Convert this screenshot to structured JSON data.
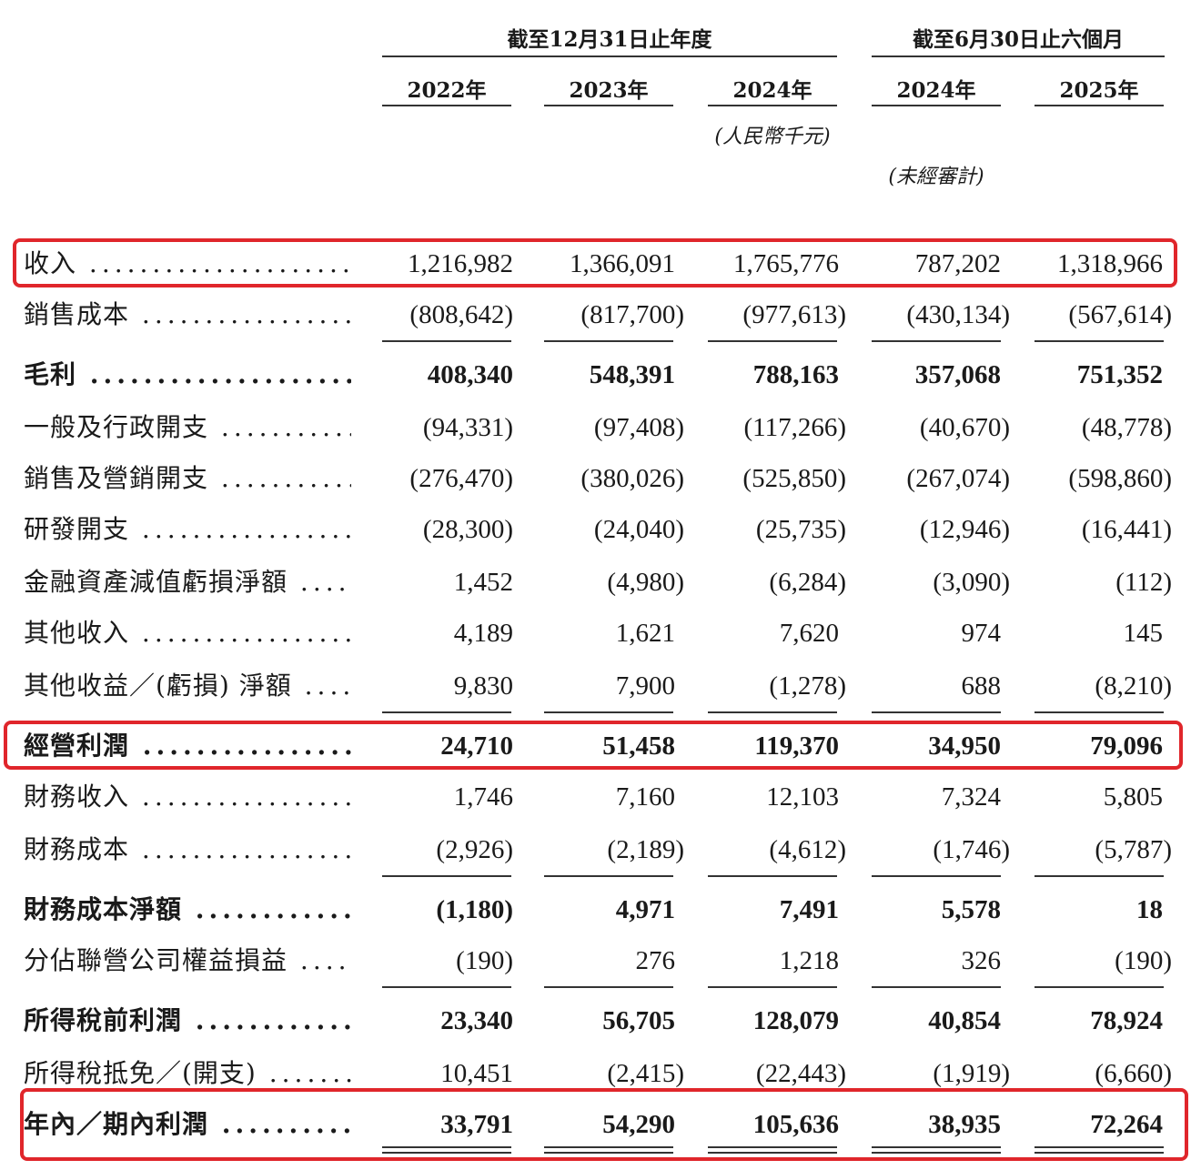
{
  "header": {
    "group_fy": "截至12月31日止年度",
    "group_6m": "截至6月30日止六個月",
    "years": [
      "2022年",
      "2023年",
      "2024年",
      "2024年",
      "2025年"
    ],
    "unit_note": "(人民幣千元)",
    "unaudited_note": "(未經審計)"
  },
  "rows": [
    {
      "label": "收入",
      "values": [
        "1,216,982",
        "1,366,091",
        "1,765,776",
        "787,202",
        "1,318,966"
      ]
    },
    {
      "label": "銷售成本",
      "values": [
        "(808,642)",
        "(817,700)",
        "(977,613)",
        "(430,134)",
        "(567,614)"
      ]
    },
    {
      "label": "毛利",
      "values": [
        "408,340",
        "548,391",
        "788,163",
        "357,068",
        "751,352"
      ]
    },
    {
      "label": "一般及行政開支",
      "values": [
        "(94,331)",
        "(97,408)",
        "(117,266)",
        "(40,670)",
        "(48,778)"
      ]
    },
    {
      "label": "銷售及營銷開支",
      "values": [
        "(276,470)",
        "(380,026)",
        "(525,850)",
        "(267,074)",
        "(598,860)"
      ]
    },
    {
      "label": "研發開支",
      "values": [
        "(28,300)",
        "(24,040)",
        "(25,735)",
        "(12,946)",
        "(16,441)"
      ]
    },
    {
      "label": "金融資產減值虧損淨額",
      "values": [
        "1,452",
        "(4,980)",
        "(6,284)",
        "(3,090)",
        "(112)"
      ]
    },
    {
      "label": "其他收入",
      "values": [
        "4,189",
        "1,621",
        "7,620",
        "974",
        "145"
      ]
    },
    {
      "label": "其他收益／(虧損) 淨額",
      "values": [
        "9,830",
        "7,900",
        "(1,278)",
        "688",
        "(8,210)"
      ]
    },
    {
      "label": "經營利潤",
      "values": [
        "24,710",
        "51,458",
        "119,370",
        "34,950",
        "79,096"
      ]
    },
    {
      "label": "財務收入",
      "values": [
        "1,746",
        "7,160",
        "12,103",
        "7,324",
        "5,805"
      ]
    },
    {
      "label": "財務成本",
      "values": [
        "(2,926)",
        "(2,189)",
        "(4,612)",
        "(1,746)",
        "(5,787)"
      ]
    },
    {
      "label": "財務成本淨額",
      "values": [
        "(1,180)",
        "4,971",
        "7,491",
        "5,578",
        "18"
      ]
    },
    {
      "label": "分佔聯營公司權益損益",
      "values": [
        "(190)",
        "276",
        "1,218",
        "326",
        "(190)"
      ]
    },
    {
      "label": "所得稅前利潤",
      "values": [
        "23,340",
        "56,705",
        "128,079",
        "40,854",
        "78,924"
      ]
    },
    {
      "label": "所得稅抵免／(開支)",
      "values": [
        "10,451",
        "(2,415)",
        "(22,443)",
        "(1,919)",
        "(6,660)"
      ]
    },
    {
      "label": "年內／期內利潤",
      "values": [
        "33,791",
        "54,290",
        "105,636",
        "38,935",
        "72,264"
      ]
    }
  ],
  "highlight_color": "#e0262b"
}
